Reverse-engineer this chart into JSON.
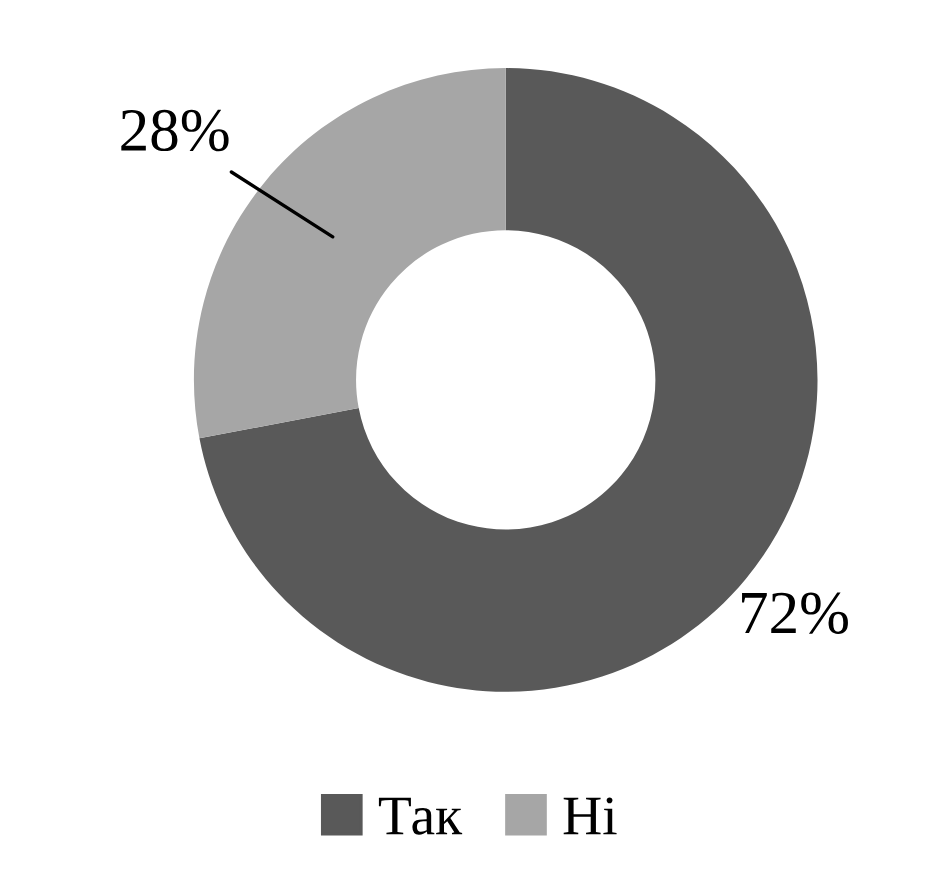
{
  "chart_data": {
    "type": "donut",
    "categories": [
      "Так",
      "Ні"
    ],
    "values": [
      72,
      28
    ],
    "colors": [
      "#595959",
      "#a6a6a6"
    ],
    "value_labels": [
      "72%",
      "28%"
    ],
    "legend": "bottom"
  }
}
